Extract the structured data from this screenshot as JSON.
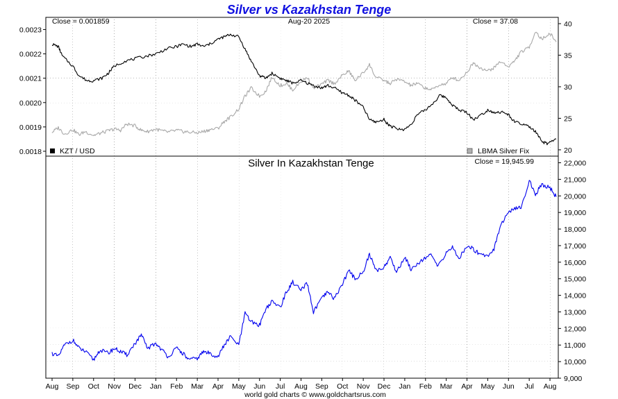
{
  "header": {
    "title": "Silver vs Kazakhstan Tenge",
    "date": "Aug-20  2025",
    "close_left": "Close = 0.001859",
    "close_right": "Close = 37.08",
    "close_bottom": "Close = 19,945.99",
    "footer": "world gold charts © www.goldchartsrus.com"
  },
  "colors": {
    "kzt": "#000000",
    "silver_usd": "#a8a8a8",
    "silver_kzt": "#0000ee",
    "grid": "#bbbbbb",
    "title": "#1010e0"
  },
  "chart_data": [
    {
      "type": "line",
      "months": [
        "Aug",
        "Sep",
        "Oct",
        "Nov",
        "Dec",
        "Jan",
        "Feb",
        "Mar",
        "Apr",
        "May",
        "Jun",
        "Jul",
        "Aug",
        "Sep",
        "Oct",
        "Nov",
        "Dec",
        "Jan",
        "Feb",
        "Mar",
        "Apr",
        "May",
        "Jun",
        "Jul",
        "Aug"
      ],
      "legend": [
        "KZT / USD",
        "LBMA Silver Fix"
      ],
      "left_axis": {
        "ticks": [
          0.0018,
          0.0019,
          0.002,
          0.0021,
          0.0022,
          0.0023
        ],
        "labels": [
          "0.0018",
          "0.0019",
          "0.0020",
          "0.0021",
          "0.0022",
          "0.0023"
        ],
        "range": [
          0.00178,
          0.00235
        ]
      },
      "right_axis": {
        "ticks": [
          20,
          25,
          30,
          35,
          40
        ],
        "labels": [
          "20",
          "25",
          "30",
          "35",
          "40"
        ],
        "range": [
          19,
          41
        ]
      },
      "series": [
        {
          "name": "KZT / USD",
          "axis": "left",
          "x": [
            0,
            0.3,
            0.5,
            1,
            1.3,
            1.7,
            2,
            2.4,
            2.7,
            3,
            3.5,
            4,
            4.5,
            5,
            5.5,
            6,
            6.3,
            6.7,
            7,
            7.3,
            7.6,
            8,
            8.3,
            8.6,
            9,
            9.3,
            9.6,
            10,
            10.3,
            10.6,
            11,
            11.3,
            11.6,
            12,
            12.3,
            12.6,
            13,
            13.3,
            13.6,
            14,
            14.3,
            14.6,
            15,
            15.3,
            15.6,
            16,
            16.2,
            16.4,
            16.7,
            17,
            17.3,
            17.6,
            18,
            18.4,
            18.7,
            19,
            19.3,
            19.6,
            20,
            20.3,
            20.7,
            21,
            21.3,
            21.7,
            22,
            22.3,
            22.7,
            23,
            23.3,
            23.6,
            23.9,
            24.3
          ],
          "y": [
            0.00224,
            0.00223,
            0.00219,
            0.00215,
            0.00211,
            0.00209,
            0.00209,
            0.0021,
            0.00212,
            0.00215,
            0.00217,
            0.00218,
            0.00219,
            0.0022,
            0.00222,
            0.00223,
            0.00224,
            0.00223,
            0.00224,
            0.00223,
            0.00224,
            0.00226,
            0.00227,
            0.00228,
            0.00227,
            0.00222,
            0.00217,
            0.00211,
            0.0021,
            0.00212,
            0.0021,
            0.00209,
            0.00208,
            0.00209,
            0.00208,
            0.00207,
            0.00206,
            0.00207,
            0.00206,
            0.00204,
            0.00203,
            0.00201,
            0.00198,
            0.00193,
            0.00192,
            0.00193,
            0.00191,
            0.0019,
            0.00189,
            0.00189,
            0.00191,
            0.00195,
            0.00197,
            0.002,
            0.00203,
            0.00202,
            0.00199,
            0.00197,
            0.00196,
            0.00193,
            0.00195,
            0.00197,
            0.00196,
            0.00196,
            0.00195,
            0.00192,
            0.00191,
            0.0019,
            0.00188,
            0.00184,
            0.00183,
            0.00185
          ]
        },
        {
          "name": "LBMA Silver Fix",
          "axis": "right",
          "x": [
            0,
            0.3,
            0.6,
            1,
            1.3,
            1.6,
            2,
            2.3,
            2.7,
            3,
            3.3,
            3.6,
            4,
            4.3,
            4.6,
            5,
            5.3,
            5.6,
            6,
            6.3,
            6.6,
            7,
            7.3,
            7.6,
            8,
            8.3,
            8.6,
            9,
            9.3,
            9.6,
            10,
            10.3,
            10.6,
            11,
            11.3,
            11.6,
            12,
            12.3,
            12.6,
            13,
            13.3,
            13.6,
            14,
            14.3,
            14.6,
            15,
            15.3,
            15.6,
            16,
            16.3,
            16.6,
            17,
            17.3,
            17.6,
            18,
            18.3,
            18.6,
            19,
            19.3,
            19.6,
            20,
            20.3,
            20.6,
            21,
            21.3,
            21.6,
            22,
            22.3,
            22.6,
            23,
            23.3,
            23.6,
            24,
            24.3
          ],
          "y": [
            22.8,
            23.5,
            22.5,
            23.2,
            22.4,
            22.9,
            22.3,
            22.6,
            23.0,
            23.3,
            23.1,
            24.1,
            23.8,
            23.1,
            22.9,
            23.3,
            23.0,
            22.8,
            23.1,
            22.9,
            22.8,
            22.7,
            22.9,
            23.2,
            23.4,
            24.5,
            25.2,
            26.5,
            28.5,
            29.8,
            28.5,
            29.3,
            31.5,
            30.2,
            30.5,
            29.5,
            30.8,
            31.5,
            29.8,
            30.4,
            31.0,
            30.5,
            31.8,
            32.5,
            31.0,
            32.2,
            33.5,
            31.5,
            31.0,
            30.5,
            31.2,
            30.8,
            30.2,
            30.5,
            29.8,
            29.5,
            30.2,
            30.5,
            31.5,
            31.0,
            32.3,
            33.8,
            33.1,
            32.5,
            33.0,
            34.0,
            33.2,
            34.1,
            35.5,
            36.2,
            38.8,
            37.5,
            38.5,
            37.1
          ]
        }
      ]
    },
    {
      "type": "line",
      "title": "Silver In Kazakhstan Tenge",
      "x_labels": [
        "Aug",
        "Sep",
        "Oct",
        "Nov",
        "Dec",
        "Jan",
        "Feb",
        "Mar",
        "Apr",
        "May",
        "Jun",
        "Jul",
        "Aug",
        "Sep",
        "Oct",
        "Nov",
        "Dec",
        "Jan",
        "Feb",
        "Mar",
        "Apr",
        "May",
        "Jun",
        "Jul",
        "Aug"
      ],
      "y_axis": {
        "ticks": [
          9000,
          10000,
          11000,
          12000,
          13000,
          14000,
          15000,
          16000,
          17000,
          18000,
          19000,
          20000,
          21000,
          22000
        ],
        "labels": [
          "9,000",
          "10,000",
          "11,000",
          "12,000",
          "13,000",
          "14,000",
          "15,000",
          "16,000",
          "17,000",
          "18,000",
          "19,000",
          "20,000",
          "21,000",
          "22,000"
        ],
        "range": [
          9000,
          22400
        ]
      },
      "series": [
        {
          "name": "",
          "x": [
            0,
            0.3,
            0.6,
            1,
            1.3,
            1.6,
            2,
            2.3,
            2.7,
            3,
            3.3,
            3.6,
            4,
            4.3,
            4.6,
            5,
            5.3,
            5.6,
            6,
            6.3,
            6.6,
            7,
            7.3,
            7.6,
            8,
            8.3,
            8.6,
            9,
            9.3,
            9.6,
            10,
            10.3,
            10.6,
            11,
            11.3,
            11.6,
            12,
            12.3,
            12.6,
            13,
            13.3,
            13.6,
            14,
            14.3,
            14.6,
            15,
            15.3,
            15.6,
            16,
            16.3,
            16.6,
            17,
            17.3,
            17.6,
            18,
            18.3,
            18.6,
            19,
            19.3,
            19.6,
            20,
            20.3,
            20.6,
            21,
            21.3,
            21.6,
            22,
            22.3,
            22.6,
            23,
            23.3,
            23.6,
            24,
            24.3
          ],
          "y": [
            10500,
            10300,
            11000,
            11300,
            10800,
            10600,
            10100,
            10700,
            10500,
            10800,
            10600,
            10400,
            11100,
            11600,
            10800,
            11100,
            10700,
            10300,
            10800,
            10500,
            10100,
            10200,
            10600,
            10500,
            10300,
            11000,
            11500,
            11000,
            12900,
            12400,
            12200,
            13200,
            13600,
            13300,
            14200,
            14800,
            14300,
            14700,
            13000,
            13800,
            14200,
            13800,
            14700,
            15500,
            15000,
            15400,
            16500,
            15500,
            15700,
            16300,
            15400,
            16300,
            15600,
            15900,
            16300,
            16400,
            15700,
            16600,
            16900,
            16200,
            17000,
            16800,
            16500,
            16400,
            16800,
            18200,
            19000,
            19200,
            19300,
            20900,
            20100,
            20700,
            20500,
            19946
          ]
        }
      ]
    }
  ]
}
